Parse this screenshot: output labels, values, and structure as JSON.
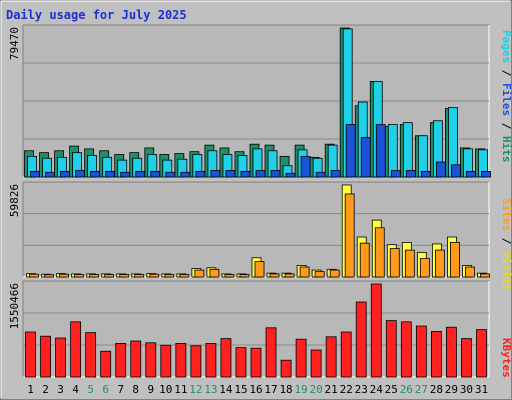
{
  "chart_data": [
    {
      "type": "bar",
      "title": "Daily usage for July 2025",
      "categories": [
        "1",
        "2",
        "3",
        "4",
        "5",
        "6",
        "7",
        "8",
        "9",
        "10",
        "11",
        "12",
        "13",
        "14",
        "15",
        "16",
        "17",
        "18",
        "19",
        "20",
        "21",
        "22",
        "23",
        "24",
        "25",
        "26",
        "27",
        "28",
        "29",
        "30",
        "31"
      ],
      "weekend_days": [
        "5",
        "6",
        "12",
        "13",
        "19",
        "20",
        "26",
        "27"
      ],
      "ymax_label": "79470",
      "ylim": [
        0,
        79470
      ],
      "legend": [
        "Hits",
        "Files",
        "Pages"
      ],
      "series": [
        {
          "name": "Hits",
          "color": "#1f8f6b",
          "values": [
            14000,
            13000,
            14000,
            16500,
            15000,
            14000,
            12000,
            13000,
            15500,
            12000,
            12500,
            13500,
            17000,
            15500,
            13500,
            17500,
            17000,
            11000,
            17000,
            10500,
            17500,
            79470,
            38000,
            51000,
            27000,
            28000,
            22000,
            29000,
            36500,
            15500,
            15000
          ]
        },
        {
          "name": "Files",
          "color": "#20d0e8",
          "values": [
            11000,
            10000,
            10500,
            13000,
            11500,
            10500,
            9000,
            10000,
            12000,
            9000,
            9500,
            12000,
            14000,
            12000,
            11500,
            15000,
            14000,
            6000,
            14500,
            10000,
            17000,
            79000,
            40000,
            51000,
            28000,
            29000,
            22000,
            30000,
            37000,
            15000,
            14500
          ]
        },
        {
          "name": "Pages",
          "color": "#1c52d8",
          "values": [
            3000,
            2500,
            3000,
            3500,
            3000,
            3000,
            2500,
            3000,
            3000,
            2500,
            2500,
            3000,
            3500,
            3500,
            3000,
            3500,
            3500,
            2000,
            11000,
            2500,
            3500,
            28000,
            21000,
            28000,
            3500,
            3500,
            3000,
            8000,
            6500,
            3000,
            3000
          ]
        }
      ]
    },
    {
      "type": "bar",
      "ymax_label": "59826",
      "ylim": [
        0,
        59826
      ],
      "legend": [
        "Visits",
        "Sites"
      ],
      "series": [
        {
          "name": "Visits",
          "color": "#ffff44",
          "values": [
            2200,
            1800,
            2200,
            2000,
            2000,
            2000,
            2000,
            2000,
            2200,
            2000,
            2000,
            5500,
            6000,
            2000,
            2000,
            12500,
            2500,
            2500,
            7500,
            4500,
            5000,
            59826,
            26000,
            37000,
            21000,
            22500,
            16000,
            21500,
            26000,
            7500,
            2500
          ]
        },
        {
          "name": "Sites",
          "color": "#ff9a1c",
          "values": [
            1800,
            1500,
            1800,
            1600,
            1600,
            1600,
            1600,
            1600,
            1800,
            1600,
            1600,
            4500,
            5000,
            1600,
            1600,
            10000,
            2000,
            2000,
            6500,
            3500,
            4500,
            54000,
            22000,
            32000,
            18500,
            17500,
            12000,
            17500,
            22500,
            6500,
            2000
          ]
        }
      ]
    },
    {
      "type": "bar",
      "ymax_label": "1550466",
      "ylim": [
        0,
        1550466
      ],
      "legend": [
        "KBytes"
      ],
      "series": [
        {
          "name": "KBytes",
          "color": "#ff2020",
          "values": [
            750000,
            680000,
            650000,
            920000,
            740000,
            430000,
            560000,
            600000,
            570000,
            530000,
            560000,
            520000,
            560000,
            640000,
            490000,
            480000,
            820000,
            280000,
            630000,
            450000,
            670000,
            750000,
            1250000,
            1550466,
            940000,
            920000,
            850000,
            760000,
            830000,
            640000,
            790000
          ]
        }
      ]
    }
  ]
}
